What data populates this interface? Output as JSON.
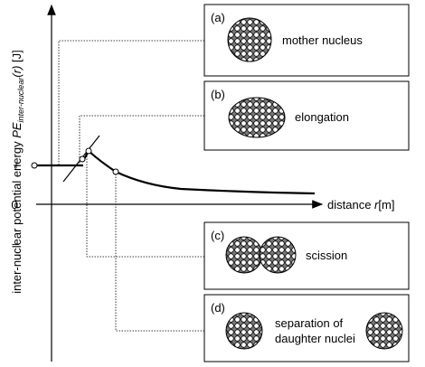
{
  "y_axis": {
    "text": "inter-nuclear potential energy",
    "symbol": "PE",
    "subscript": "inter-nuclear",
    "argument": "(r)",
    "unit": "[J]",
    "ticks": [
      "+",
      "0",
      "–"
    ]
  },
  "x_axis": {
    "text": "distance",
    "symbol": "r",
    "unit": "[m]"
  },
  "panels": [
    {
      "label": "(a)",
      "caption": [
        "mother nucleus"
      ]
    },
    {
      "label": "(b)",
      "caption": [
        "elongation"
      ]
    },
    {
      "label": "(c)",
      "caption": [
        "scission"
      ]
    },
    {
      "label": "(d)",
      "caption": [
        "separation of",
        "daughter nuclei"
      ]
    }
  ]
}
